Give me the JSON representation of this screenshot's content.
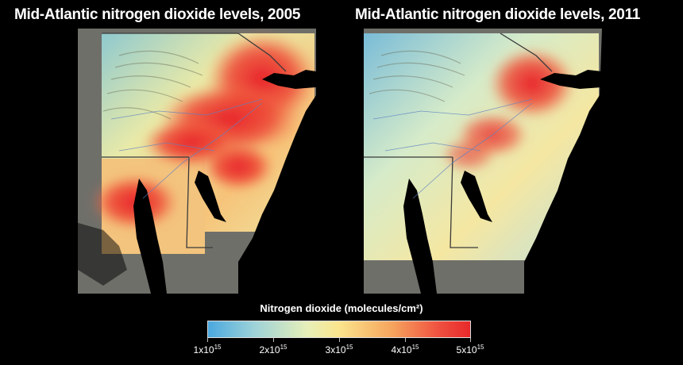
{
  "panels": [
    {
      "title": "Mid-Atlantic nitrogen dioxide levels, 2005",
      "year": "2005",
      "pollution_level": "high"
    },
    {
      "title": "Mid-Atlantic nitrogen dioxide levels, 2011",
      "year": "2011",
      "pollution_level": "lower"
    }
  ],
  "legend": {
    "title": "Nitrogen dioxide (molecules/cm²)",
    "ticks": [
      {
        "base": "1x10",
        "exp": "15"
      },
      {
        "base": "2x10",
        "exp": "15"
      },
      {
        "base": "3x10",
        "exp": "15"
      },
      {
        "base": "4x10",
        "exp": "15"
      },
      {
        "base": "5x10",
        "exp": "15"
      }
    ],
    "colors": [
      "#4aa8df",
      "#9fd3d8",
      "#e6efb8",
      "#fbe58c",
      "#f6a55e",
      "#ef5140",
      "#e8282a"
    ]
  }
}
